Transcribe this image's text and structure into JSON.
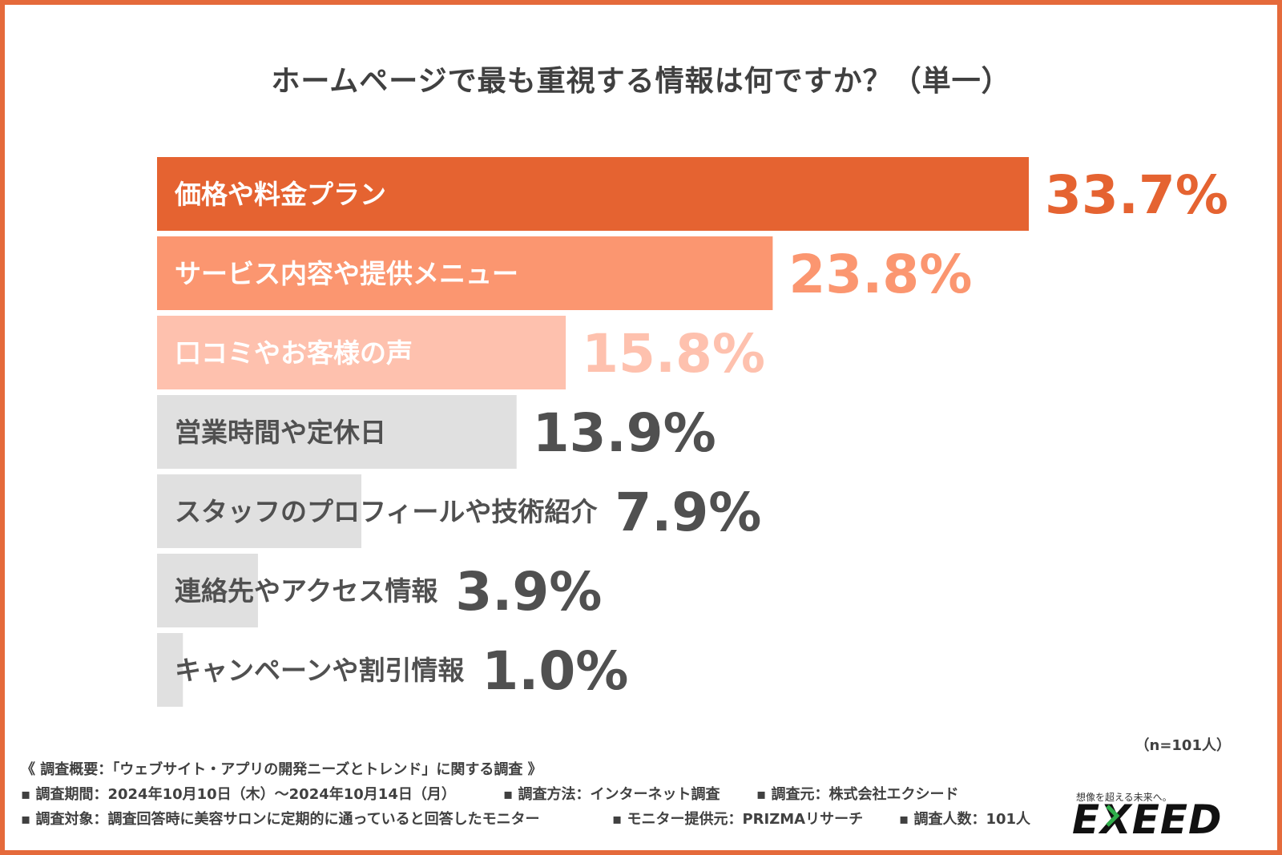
{
  "title": "ホームページで最も重視する情報は何ですか？（単一）",
  "chart_data": {
    "type": "bar",
    "orientation": "horizontal",
    "title": "ホームページで最も重視する情報は何ですか？（単一）",
    "categories": [
      "価格や料金プラン",
      "サービス内容や提供メニュー",
      "口コミやお客様の声",
      "営業時間や定休日",
      "スタッフのプロフィールや技術紹介",
      "連絡先やアクセス情報",
      "キャンペーンや割引情報"
    ],
    "values": [
      33.7,
      23.8,
      15.8,
      13.9,
      7.9,
      3.9,
      1.0
    ],
    "value_labels": [
      "33.7%",
      "23.8%",
      "15.8%",
      "13.9%",
      "7.9%",
      "3.9%",
      "1.0%"
    ],
    "xlim": [
      0,
      33.7
    ],
    "unit": "%",
    "colors": {
      "bars": [
        "#e56331",
        "#fb9670",
        "#fec1ae",
        "#e0e0e0",
        "#e0e0e0",
        "#e0e0e0",
        "#e0e0e0"
      ],
      "category_text": [
        "#ffffff",
        "#ffffff",
        "#ffffff",
        "#505050",
        "#505050",
        "#505050",
        "#505050"
      ],
      "value_text": [
        "#e56331",
        "#fb9670",
        "#fec1ae",
        "#505050",
        "#505050",
        "#505050",
        "#505050"
      ]
    }
  },
  "sample_size": "（n=101人）",
  "footnotes": {
    "overview": "《 調査概要：「ウェブサイト・アプリの開発ニーズとトレンド」に関する調査 》",
    "period": "▪ 調査期間：2024年10月10日（木）～2024年10月14日（月）",
    "method": "▪ 調査方法：インターネット調査",
    "source": "▪ 調査元：株式会社エクシード",
    "target": "▪ 調査対象：調査回答時に美容サロンに定期的に通っていると回答したモニター",
    "provider": "▪ モニター提供元：PRIZMAリサーチ",
    "respondents": "▪ 調査人数：101人"
  },
  "logo": {
    "tagline": "想像を超える未来へ。",
    "wordmark": "EXEED"
  },
  "frame_color": "#e56a3b"
}
